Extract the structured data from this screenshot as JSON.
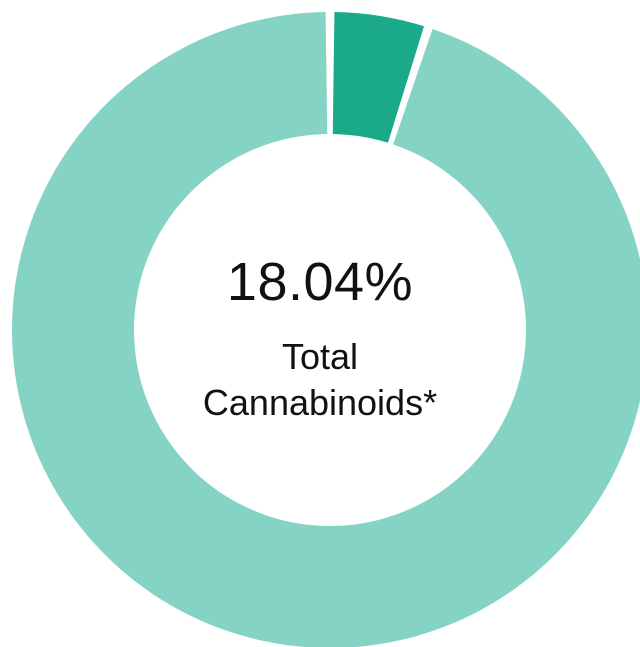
{
  "chart_data": {
    "type": "pie",
    "variant": "donut",
    "slices": [
      {
        "label": "",
        "value": 5.0,
        "color": "#1aaa8a"
      },
      {
        "label": "",
        "value": 95.0,
        "color": "#85d3c5"
      }
    ],
    "center": {
      "value_text": "18.04%",
      "label_line1": "Total",
      "label_line2": "Cannabinoids*"
    },
    "title": "",
    "legend": "none"
  }
}
